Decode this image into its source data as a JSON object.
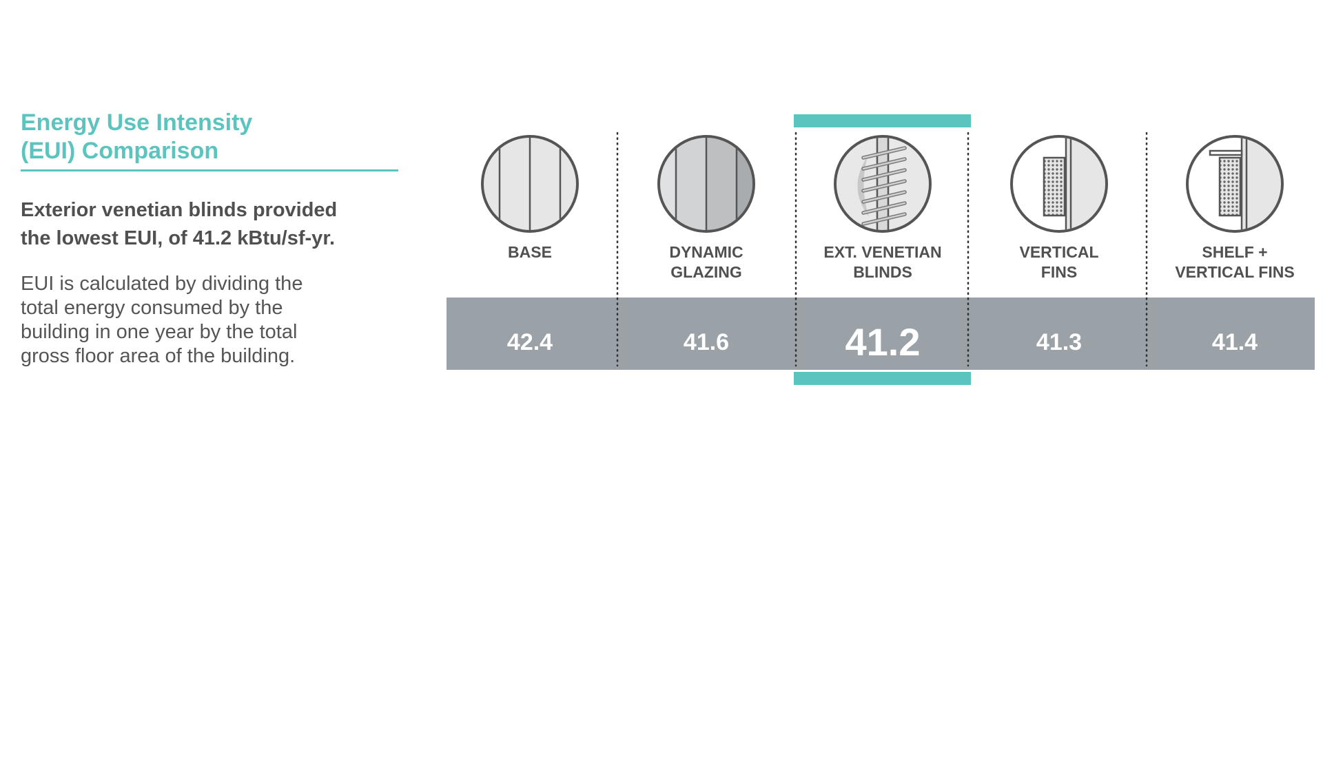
{
  "text": {
    "title": "Energy Use Intensity\n(EUI) Comparison",
    "headline": "Exterior venetian blinds provided\nthe lowest EUI, of 41.2 kBtu/sf-yr.",
    "description": "EUI is calculated by dividing the\ntotal energy consumed by the\nbuilding in one year by the total\ngross floor area of the building."
  },
  "colors": {
    "accent": "#5cc4be",
    "value_band": "#9aa2a8",
    "dark_text": "#505050",
    "icon_stroke": "#555555"
  },
  "columns": [
    {
      "label_lines": [
        "BASE"
      ],
      "value": "42.4",
      "icon": "base-window-icon",
      "highlight": false
    },
    {
      "label_lines": [
        "DYNAMIC",
        "GLAZING"
      ],
      "value": "41.6",
      "icon": "dynamic-glazing-icon",
      "highlight": false
    },
    {
      "label_lines": [
        "EXT. VENETIAN",
        "BLINDS"
      ],
      "value": "41.2",
      "icon": "venetian-blinds-icon",
      "highlight": true
    },
    {
      "label_lines": [
        "VERTICAL",
        "FINS"
      ],
      "value": "41.3",
      "icon": "vertical-fins-icon",
      "highlight": false
    },
    {
      "label_lines": [
        "SHELF +",
        "VERTICAL FINS"
      ],
      "value": "41.4",
      "icon": "shelf-vertical-fins-icon",
      "highlight": false
    }
  ]
}
